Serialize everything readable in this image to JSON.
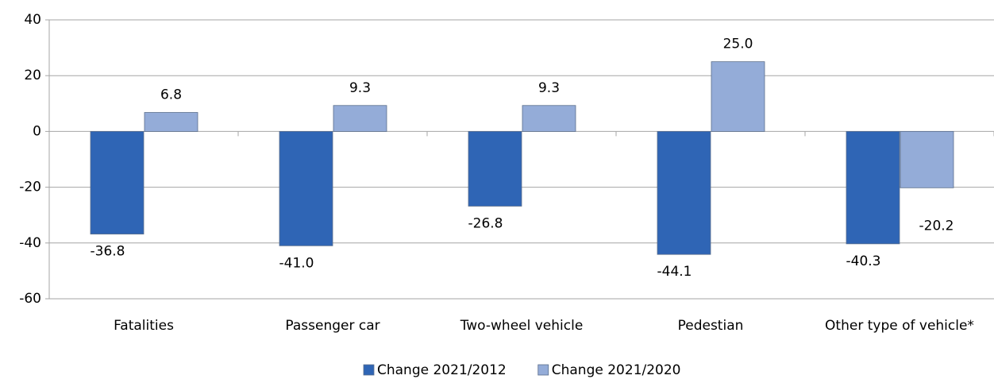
{
  "chart_data": {
    "type": "bar",
    "categories": [
      "Fatalities",
      "Passenger car",
      "Two-wheel vehicle",
      "Pedestian",
      "Other type of vehicle*"
    ],
    "series": [
      {
        "name": "Change 2021/2012",
        "color": "#2f65b5",
        "values": [
          -36.8,
          -41.0,
          -26.8,
          -44.1,
          -40.3
        ],
        "value_labels": [
          "-36.8",
          "-41.0",
          "-26.8",
          "-44.1",
          "-40.3"
        ]
      },
      {
        "name": "Change 2021/2020",
        "color": "#94acd8",
        "values": [
          6.8,
          9.3,
          9.3,
          25.0,
          -20.2
        ],
        "value_labels": [
          "6.8",
          "9.3",
          "9.3",
          "25.0",
          "-20.2"
        ]
      }
    ],
    "ylim": [
      -60,
      40
    ],
    "yticks": [
      -60,
      -40,
      -20,
      0,
      20,
      40
    ],
    "grid": true,
    "legend": "bottom"
  }
}
